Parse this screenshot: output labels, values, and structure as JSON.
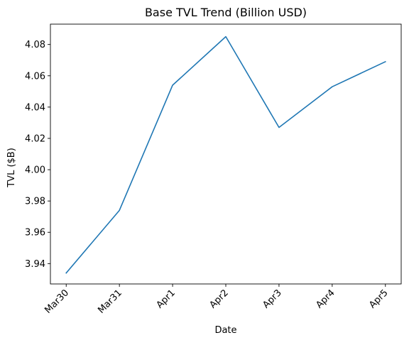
{
  "chart_data": {
    "type": "line",
    "title": "Base TVL Trend (Billion USD)",
    "xlabel": "Date",
    "ylabel": "TVL ($B)",
    "categories": [
      "Mar30",
      "Mar31",
      "Apr1",
      "Apr2",
      "Apr3",
      "Apr4",
      "Apr5"
    ],
    "series": [
      {
        "values": [
          3.934,
          3.974,
          4.054,
          4.085,
          4.027,
          4.053,
          4.069
        ],
        "color": "#1f77b4"
      }
    ],
    "ylim": [
      3.927,
      4.093
    ],
    "yticks": [
      3.94,
      3.96,
      3.98,
      4.0,
      4.02,
      4.04,
      4.06,
      4.08
    ],
    "ytick_labels": [
      "3.94",
      "3.96",
      "3.98",
      "4.00",
      "4.02",
      "4.04",
      "4.06",
      "4.08"
    ],
    "grid": false,
    "legend": "none"
  }
}
